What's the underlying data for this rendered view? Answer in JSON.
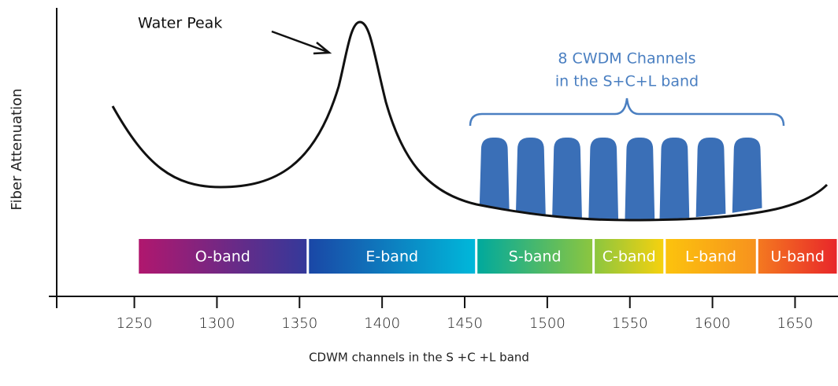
{
  "diagram": {
    "annotation": "Water Peak",
    "y_label": "Fiber Attenuation",
    "x_label": "CDWM channels in the S +C +L band",
    "xlim": [
      1203,
      1676
    ],
    "xticks": [
      1250,
      1300,
      1350,
      1400,
      1450,
      1500,
      1550,
      1600,
      1650
    ],
    "bands": [
      {
        "label": "O-band",
        "start": 1252,
        "end": 1355,
        "colors": [
          "#b0176e",
          "#34399a"
        ]
      },
      {
        "label": "E-band",
        "start": 1355,
        "end": 1457,
        "colors": [
          "#1a47a6",
          "#00b8da"
        ]
      },
      {
        "label": "S-band",
        "start": 1457,
        "end": 1528,
        "colors": [
          "#00a99d",
          "#8cc63f"
        ]
      },
      {
        "label": "C-band",
        "start": 1528,
        "end": 1571,
        "colors": [
          "#8cc63f",
          "#f6d10e"
        ]
      },
      {
        "label": "L-band",
        "start": 1571,
        "end": 1627,
        "colors": [
          "#fcc30d",
          "#f7921e"
        ]
      },
      {
        "label": "U-band",
        "start": 1627,
        "end": 1676,
        "colors": [
          "#f47920",
          "#e8262a"
        ]
      }
    ],
    "channels": {
      "label_lines": [
        "8 CWDM Channels",
        "in the S+C+L band"
      ],
      "label_color": "#4a7fc1",
      "color": "#3a6fb7",
      "width": 18,
      "centers": [
        1468,
        1490,
        1512,
        1534,
        1556,
        1577,
        1599,
        1621
      ]
    }
  }
}
